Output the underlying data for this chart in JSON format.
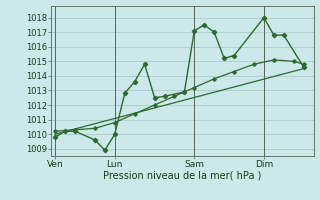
{
  "bg_color": "#cce8e8",
  "grid_color": "#aacccc",
  "line_color": "#2d6a2d",
  "marker_color": "#2d6a2d",
  "xlabel": "Pression niveau de la mer( hPa )",
  "ylim": [
    1008.5,
    1018.8
  ],
  "yticks": [
    1009,
    1010,
    1011,
    1012,
    1013,
    1014,
    1015,
    1016,
    1017,
    1018
  ],
  "day_labels": [
    "Ven",
    "Lun",
    "Sam",
    "Dim"
  ],
  "day_positions": [
    0.5,
    3.5,
    7.0,
    10.5
  ],
  "day_vlines": [
    0.0,
    3.0,
    7.0,
    10.5
  ],
  "xlim": [
    -0.2,
    13.0
  ],
  "series1_x": [
    0.0,
    0.5,
    1.0,
    2.0,
    2.5,
    3.0,
    3.5,
    4.0,
    4.5,
    5.0,
    5.5,
    6.5,
    7.0,
    7.5,
    8.0,
    8.5,
    9.0,
    10.5,
    11.0,
    11.5,
    12.5
  ],
  "series1_y": [
    1009.8,
    1010.2,
    1010.2,
    1009.6,
    1008.9,
    1010.0,
    1012.8,
    1013.6,
    1014.8,
    1012.5,
    1012.6,
    1012.9,
    1017.1,
    1017.5,
    1017.0,
    1015.2,
    1015.4,
    1018.0,
    1016.8,
    1016.8,
    1014.6
  ],
  "series2_x": [
    0.0,
    1.0,
    2.0,
    3.0,
    4.0,
    5.0,
    6.0,
    7.0,
    8.0,
    9.0,
    10.0,
    11.0,
    12.0,
    12.5
  ],
  "series2_y": [
    1010.2,
    1010.3,
    1010.4,
    1010.8,
    1011.4,
    1012.0,
    1012.6,
    1013.2,
    1013.8,
    1014.3,
    1014.8,
    1015.1,
    1015.0,
    1014.8
  ],
  "series3_x": [
    0.0,
    12.5
  ],
  "series3_y": [
    1010.0,
    1014.5
  ]
}
